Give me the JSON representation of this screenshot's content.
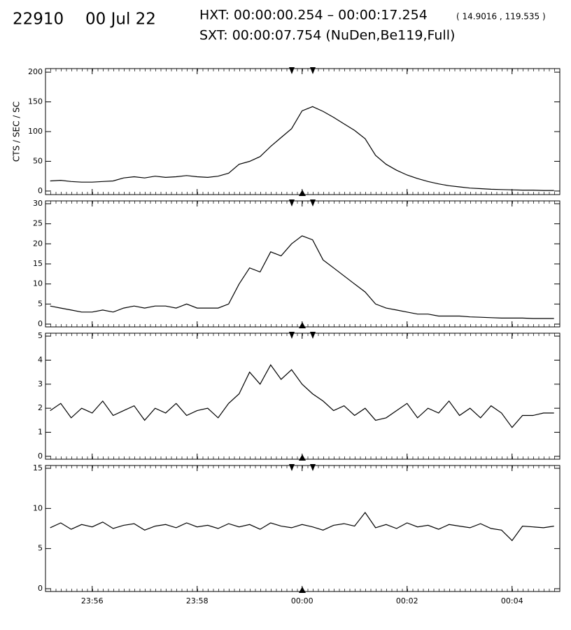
{
  "header": {
    "id": "22910",
    "date": "00 Jul 22",
    "hxt": "HXT: 00:00:00.254 – 00:00:17.254",
    "coords": "( 14.9016 , 119.535 )",
    "sxt": "SXT: 00:00:07.754 (NuDen,Be119,Full)"
  },
  "chart_data": {
    "type": "line",
    "ylabel": "CTS / SEC / SC",
    "x": [
      -4.8,
      -4.6,
      -4.4,
      -4.2,
      -4.0,
      -3.8,
      -3.6,
      -3.4,
      -3.2,
      -3.0,
      -2.8,
      -2.6,
      -2.4,
      -2.2,
      -2.0,
      -1.8,
      -1.6,
      -1.4,
      -1.2,
      -1.0,
      -0.8,
      -0.6,
      -0.4,
      -0.2,
      0,
      0.2,
      0.4,
      0.6,
      0.8,
      1.0,
      1.2,
      1.4,
      1.6,
      1.8,
      2.0,
      2.2,
      2.4,
      2.6,
      2.8,
      3.0,
      3.2,
      3.4,
      3.6,
      3.8,
      4.0,
      4.2,
      4.4,
      4.6,
      4.8
    ],
    "xlim": [
      -4.89,
      4.91
    ],
    "xticks": [
      {
        "value": -4,
        "label": "23:56"
      },
      {
        "value": -2,
        "label": "23:58"
      },
      {
        "value": 0,
        "label": "00:00"
      },
      {
        "value": 2,
        "label": "00:02"
      },
      {
        "value": 4,
        "label": "00:04"
      }
    ],
    "panels": [
      {
        "ylim": [
          -6,
          206
        ],
        "yticks": [
          0,
          50,
          100,
          150,
          200
        ],
        "series": [
          {
            "color": "#000000",
            "values": [
              17,
              18,
              16,
              15,
              15,
              16,
              17,
              22,
              24,
              22,
              25,
              23,
              24,
              26,
              24,
              23,
              25,
              30,
              45,
              50,
              58,
              75,
              90,
              105,
              135,
              142,
              134,
              124,
              113,
              102,
              88,
              60,
              45,
              35,
              27,
              21,
              16,
              12,
              9,
              7,
              5,
              4,
              3,
              2.5,
              2,
              1.5,
              1.5,
              1,
              1
            ]
          }
        ]
      },
      {
        "ylim": [
          -0.7,
          30.7
        ],
        "yticks": [
          0,
          5,
          10,
          15,
          20,
          25,
          30
        ],
        "series": [
          {
            "color": "#000000",
            "values": [
              4.5,
              4,
              3.5,
              3,
              3,
              3.5,
              3,
              4,
              4.5,
              4,
              4.5,
              4.5,
              4,
              5,
              4,
              4,
              4,
              5,
              10,
              14,
              13,
              18,
              17,
              20,
              22,
              21,
              16,
              14,
              12,
              10,
              8,
              5,
              4,
              3.5,
              3,
              2.5,
              2.5,
              2,
              2,
              2,
              1.8,
              1.7,
              1.6,
              1.5,
              1.5,
              1.5,
              1.4,
              1.4,
              1.4
            ]
          }
        ]
      },
      {
        "ylim": [
          -0.12,
          5.12
        ],
        "yticks": [
          0,
          1,
          2,
          3,
          4,
          5
        ],
        "series": [
          {
            "color": "#000000",
            "values": [
              1.9,
              2.2,
              1.6,
              2.0,
              1.8,
              2.3,
              1.7,
              1.9,
              2.1,
              1.5,
              2.0,
              1.8,
              2.2,
              1.7,
              1.9,
              2.0,
              1.6,
              2.2,
              2.6,
              3.5,
              3.0,
              3.8,
              3.2,
              3.6,
              3.0,
              2.6,
              2.3,
              1.9,
              2.1,
              1.7,
              2.0,
              1.5,
              1.6,
              1.9,
              2.2,
              1.6,
              2.0,
              1.8,
              2.3,
              1.7,
              2.0,
              1.6,
              2.1,
              1.8,
              1.2,
              1.7,
              1.7,
              1.8,
              1.8
            ]
          }
        ]
      },
      {
        "ylim": [
          -0.35,
          15.35
        ],
        "yticks": [
          0,
          5,
          10,
          15
        ],
        "series": [
          {
            "color": "#000000",
            "values": [
              7.6,
              8.2,
              7.4,
              8.0,
              7.7,
              8.3,
              7.5,
              7.9,
              8.1,
              7.3,
              7.8,
              8.0,
              7.6,
              8.2,
              7.7,
              7.9,
              7.5,
              8.1,
              7.7,
              8.0,
              7.4,
              8.2,
              7.8,
              7.6,
              8.0,
              7.7,
              7.3,
              7.9,
              8.1,
              7.8,
              9.5,
              7.6,
              8.0,
              7.5,
              8.2,
              7.7,
              7.9,
              7.4,
              8.0,
              7.8,
              7.6,
              8.1,
              7.5,
              7.3,
              6.0,
              7.8,
              7.7,
              7.6,
              7.8
            ]
          }
        ]
      }
    ]
  }
}
